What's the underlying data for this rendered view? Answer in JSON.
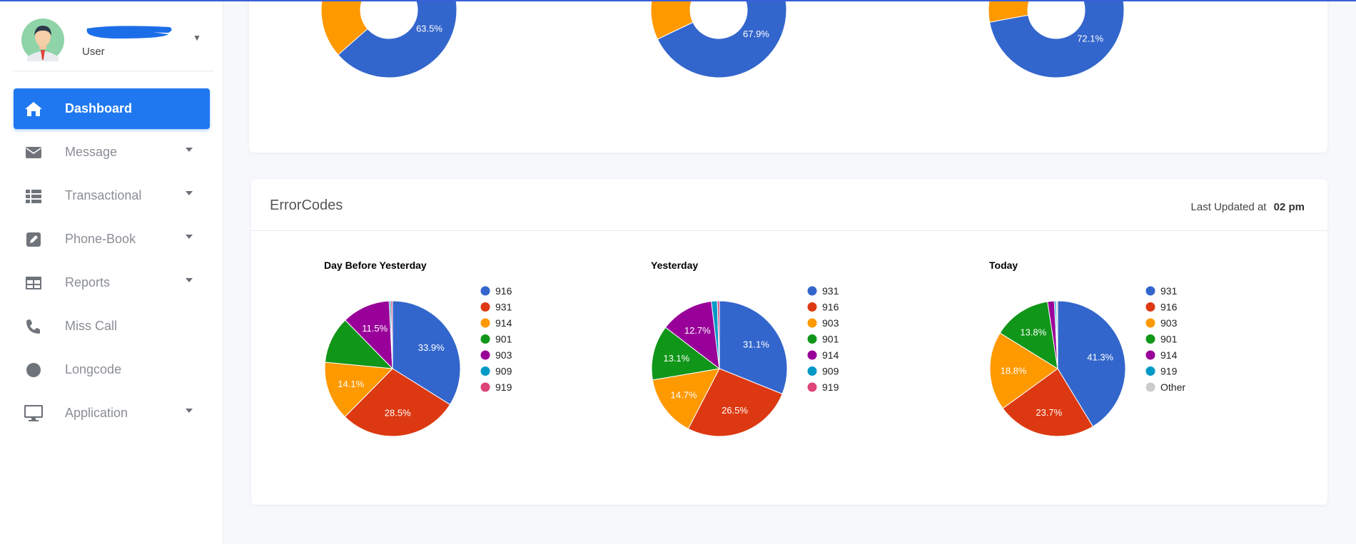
{
  "sidebar": {
    "user_role": "User",
    "nav": [
      {
        "label": "Dashboard",
        "icon": "home-icon",
        "active": true,
        "caret": false
      },
      {
        "label": "Message",
        "icon": "envelope-icon",
        "active": false,
        "caret": true
      },
      {
        "label": "Transactional",
        "icon": "list-icon",
        "active": false,
        "caret": true
      },
      {
        "label": "Phone-Book",
        "icon": "edit-icon",
        "active": false,
        "caret": true
      },
      {
        "label": "Reports",
        "icon": "table-icon",
        "active": false,
        "caret": true
      },
      {
        "label": "Miss Call",
        "icon": "phone-icon",
        "active": false,
        "caret": false
      },
      {
        "label": "Longcode",
        "icon": "circle-icon",
        "active": false,
        "caret": false
      },
      {
        "label": "Application",
        "icon": "monitor-icon",
        "active": false,
        "caret": true
      }
    ]
  },
  "error_card": {
    "title": "ErrorCodes",
    "updated_label": "Last Updated at",
    "updated_value": "02 pm"
  },
  "colors": {
    "accent": "#1f78f0",
    "blue": "#3366cc",
    "red": "#dc3912",
    "orange": "#ff9900",
    "green": "#109618",
    "purple": "#990099",
    "teal": "#0099c6",
    "pink": "#dd4477",
    "grey": "#cccccc"
  },
  "chart_data": [
    {
      "type": "pie",
      "variant": "donut",
      "partial": true,
      "slices": [
        {
          "value": 63.5,
          "label": "63.5%",
          "color": "#3366cc"
        },
        {
          "value": 34.9,
          "color": "#ff9900"
        },
        {
          "value": 0.8,
          "color": "#dc3912"
        },
        {
          "value": 0.8,
          "color": "#990099"
        }
      ]
    },
    {
      "type": "pie",
      "variant": "donut",
      "partial": true,
      "slices": [
        {
          "value": 67.9,
          "label": "67.9%",
          "color": "#3366cc"
        },
        {
          "value": 31.3,
          "color": "#ff9900"
        },
        {
          "value": 0.8,
          "color": "#dc3912"
        }
      ]
    },
    {
      "type": "pie",
      "variant": "donut",
      "partial": true,
      "slices": [
        {
          "value": 72.1,
          "label": "72.1%",
          "color": "#3366cc"
        },
        {
          "value": 27.1,
          "color": "#ff9900"
        },
        {
          "value": 0.8,
          "color": "#dc3912"
        }
      ]
    },
    {
      "type": "pie",
      "title": "Day Before Yesterday",
      "legend": [
        "916",
        "931",
        "914",
        "901",
        "903",
        "909",
        "919"
      ],
      "slices": [
        {
          "name": "916",
          "value": 33.9,
          "label": "33.9%",
          "color": "#3366cc"
        },
        {
          "name": "931",
          "value": 28.5,
          "label": "28.5%",
          "color": "#dc3912"
        },
        {
          "name": "914",
          "value": 14.1,
          "label": "14.1%",
          "color": "#ff9900"
        },
        {
          "name": "901",
          "value": 11.2,
          "color": "#109618"
        },
        {
          "name": "903",
          "value": 11.5,
          "label": "11.5%",
          "color": "#990099"
        },
        {
          "name": "909",
          "value": 0.4,
          "color": "#0099c6"
        },
        {
          "name": "919",
          "value": 0.4,
          "color": "#dd4477"
        }
      ]
    },
    {
      "type": "pie",
      "title": "Yesterday",
      "legend": [
        "931",
        "916",
        "903",
        "901",
        "914",
        "909",
        "919"
      ],
      "slices": [
        {
          "name": "931",
          "value": 31.1,
          "label": "31.1%",
          "color": "#3366cc"
        },
        {
          "name": "916",
          "value": 26.5,
          "label": "26.5%",
          "color": "#dc3912"
        },
        {
          "name": "903",
          "value": 14.7,
          "label": "14.7%",
          "color": "#ff9900"
        },
        {
          "name": "901",
          "value": 13.1,
          "label": "13.1%",
          "color": "#109618"
        },
        {
          "name": "914",
          "value": 12.7,
          "label": "12.7%",
          "color": "#990099"
        },
        {
          "name": "909",
          "value": 1.4,
          "color": "#0099c6"
        },
        {
          "name": "919",
          "value": 0.5,
          "color": "#dd4477"
        }
      ]
    },
    {
      "type": "pie",
      "title": "Today",
      "legend": [
        "931",
        "916",
        "903",
        "901",
        "914",
        "919",
        "Other"
      ],
      "slices": [
        {
          "name": "931",
          "value": 41.3,
          "label": "41.3%",
          "color": "#3366cc"
        },
        {
          "name": "916",
          "value": 23.7,
          "label": "23.7%",
          "color": "#dc3912"
        },
        {
          "name": "903",
          "value": 18.8,
          "label": "18.8%",
          "color": "#ff9900"
        },
        {
          "name": "901",
          "value": 13.8,
          "label": "13.8%",
          "color": "#109618"
        },
        {
          "name": "914",
          "value": 1.6,
          "color": "#990099"
        },
        {
          "name": "919",
          "value": 0.4,
          "color": "#0099c6"
        },
        {
          "name": "Other",
          "value": 0.4,
          "color": "#cccccc"
        }
      ]
    }
  ]
}
